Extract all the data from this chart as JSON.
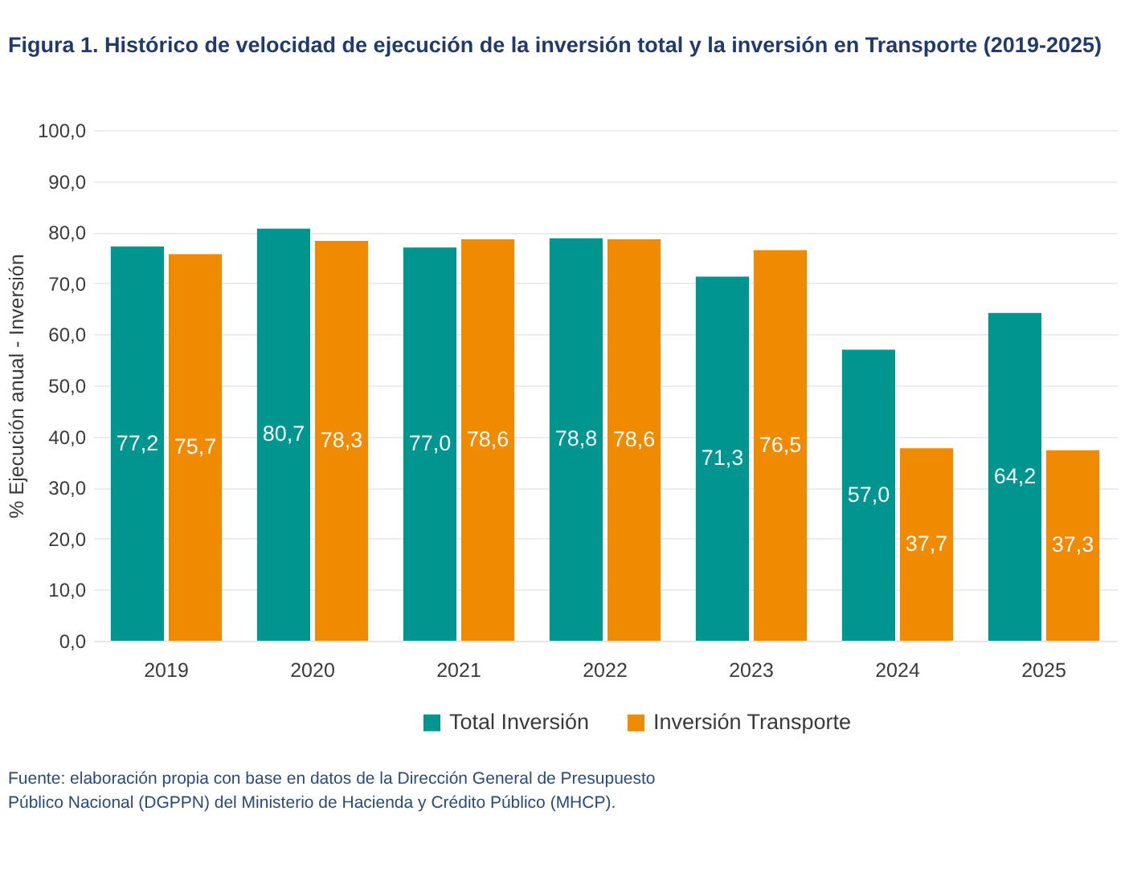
{
  "chart_data": {
    "type": "bar",
    "title": "Figura 1. Histórico de velocidad de ejecución de la inversión total y la inversión en Transporte (2019-2025)",
    "ylabel": "% Ejecución anual - Inversión",
    "categories": [
      "2019",
      "2020",
      "2021",
      "2022",
      "2023",
      "2024",
      "2025"
    ],
    "series": [
      {
        "name": "Total Inversión",
        "color": "#00968f",
        "values": [
          77.2,
          80.7,
          77.0,
          78.8,
          71.3,
          57.0,
          64.2
        ],
        "value_labels": [
          "77,2",
          "80,7",
          "77,0",
          "78,8",
          "71,3",
          "57,0",
          "64,2"
        ]
      },
      {
        "name": "Inversión Transporte",
        "color": "#f08a00",
        "values": [
          75.7,
          78.3,
          78.6,
          78.6,
          76.5,
          37.7,
          37.3
        ],
        "value_labels": [
          "75,7",
          "78,3",
          "78,6",
          "78,6",
          "76,5",
          "37,7",
          "37,3"
        ]
      }
    ],
    "ylim": [
      0,
      100
    ],
    "yticks": [
      {
        "value": 0,
        "label": "0,0"
      },
      {
        "value": 10,
        "label": "10,0"
      },
      {
        "value": 20,
        "label": "20,0"
      },
      {
        "value": 30,
        "label": "30,0"
      },
      {
        "value": 40,
        "label": "40,0"
      },
      {
        "value": 50,
        "label": "50,0"
      },
      {
        "value": 60,
        "label": "60,0"
      },
      {
        "value": 70,
        "label": "70,0"
      },
      {
        "value": 80,
        "label": "80,0"
      },
      {
        "value": 90,
        "label": "90,0"
      },
      {
        "value": 100,
        "label": "100,0"
      }
    ],
    "grid": "y",
    "legend": "bottom",
    "annotations": [
      "Fuente: elaboración propia con base en datos de la Dirección General de Presupuesto Público Nacional (DGPPN) del Ministerio de Hacienda y Crédito Público (MHCP)."
    ]
  }
}
